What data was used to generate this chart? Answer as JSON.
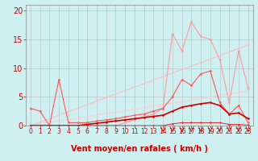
{
  "xlabel": "Vent moyen/en rafales ( km/h )",
  "background_color": "#cff0f0",
  "grid_color": "#bbbbbb",
  "xlim": [
    -0.5,
    23.5
  ],
  "ylim": [
    0,
    21
  ],
  "yticks": [
    0,
    5,
    10,
    15,
    20
  ],
  "xticks": [
    0,
    1,
    2,
    3,
    4,
    5,
    6,
    7,
    8,
    9,
    10,
    11,
    12,
    13,
    14,
    15,
    16,
    17,
    18,
    19,
    20,
    21,
    22,
    23
  ],
  "series": [
    {
      "x": [
        0,
        23
      ],
      "y": [
        0,
        14
      ],
      "color": "#ffbbbb",
      "linewidth": 0.8,
      "marker": null
    },
    {
      "x": [
        0,
        23
      ],
      "y": [
        0,
        6
      ],
      "color": "#ffcccc",
      "linewidth": 0.8,
      "marker": null
    },
    {
      "x": [
        0,
        1,
        2,
        3,
        4,
        5,
        6,
        7,
        8,
        9,
        10,
        11,
        12,
        13,
        14,
        15,
        16,
        17,
        18,
        19,
        20,
        21,
        22,
        23
      ],
      "y": [
        0,
        0,
        0,
        0,
        0,
        0,
        0,
        0,
        0,
        0,
        0.5,
        1,
        1.5,
        2,
        3,
        16,
        13,
        18,
        15.5,
        15,
        11.5,
        4,
        13,
        6.5
      ],
      "color": "#ff9999",
      "linewidth": 0.8,
      "marker": "o",
      "markersize": 1.5
    },
    {
      "x": [
        0,
        1,
        2,
        3,
        4,
        5,
        6,
        7,
        8,
        9,
        10,
        11,
        12,
        13,
        14,
        15,
        16,
        17,
        18,
        19,
        20,
        21,
        22,
        23
      ],
      "y": [
        3,
        2.5,
        0,
        8,
        0.5,
        0.5,
        0.5,
        0.8,
        1,
        1.2,
        1.5,
        1.8,
        2,
        2.5,
        3,
        5,
        8,
        7,
        9,
        9.5,
        4,
        2,
        3.5,
        0.5
      ],
      "color": "#ff5555",
      "linewidth": 0.8,
      "marker": "o",
      "markersize": 1.5
    },
    {
      "x": [
        0,
        1,
        2,
        3,
        4,
        5,
        6,
        7,
        8,
        9,
        10,
        11,
        12,
        13,
        14,
        15,
        16,
        17,
        18,
        19,
        20,
        21,
        22,
        23
      ],
      "y": [
        0,
        0,
        0,
        0,
        0,
        0,
        0.2,
        0.4,
        0.6,
        0.8,
        1.0,
        1.2,
        1.4,
        1.6,
        1.8,
        2.5,
        3.2,
        3.5,
        3.8,
        4.0,
        3.5,
        2,
        2.2,
        1.2
      ],
      "color": "#cc0000",
      "linewidth": 1.2,
      "marker": "o",
      "markersize": 1.5
    },
    {
      "x": [
        0,
        1,
        2,
        3,
        4,
        5,
        6,
        7,
        8,
        9,
        10,
        11,
        12,
        13,
        14,
        15,
        16,
        17,
        18,
        19,
        20,
        21,
        22,
        23
      ],
      "y": [
        0,
        0,
        0,
        0,
        0,
        0,
        0,
        0,
        0,
        0,
        0,
        0,
        0,
        0,
        0,
        0.3,
        0.5,
        0.5,
        0.5,
        0.5,
        0.5,
        0.2,
        0.2,
        0.1
      ],
      "color": "#dd2222",
      "linewidth": 0.7,
      "marker": "o",
      "markersize": 1.2
    }
  ],
  "arrows": {
    "x_positions": [
      14,
      15,
      16,
      17,
      18,
      19,
      20,
      21,
      22,
      23
    ],
    "color": "#cc0000",
    "symbol": "→"
  },
  "xlabel_color": "#cc0000",
  "tick_color": "#cc0000",
  "xlabel_fontsize": 7,
  "ytick_fontsize": 7,
  "xtick_fontsize": 5.5,
  "spine_color": "#888888"
}
